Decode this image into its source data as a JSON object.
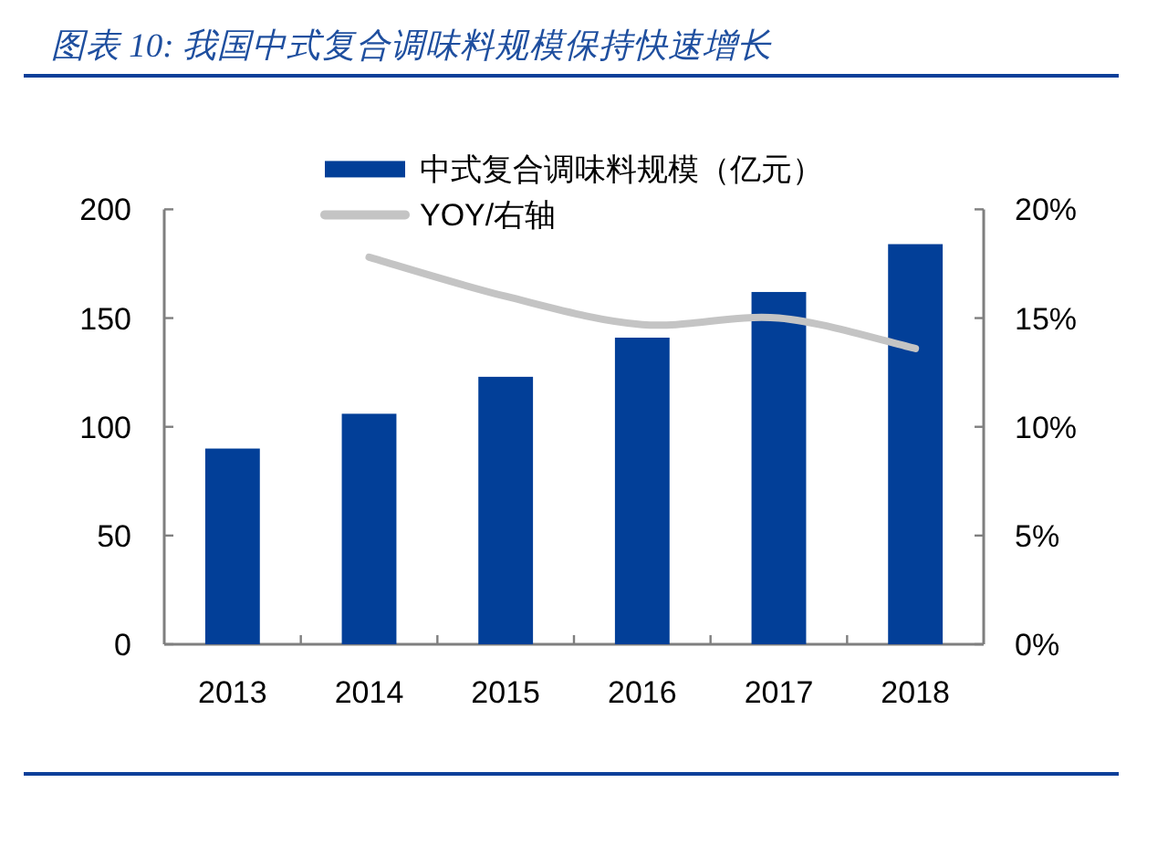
{
  "chart_data": {
    "type": "bar",
    "title": "图表 10: 我国中式复合调味料规模保持快速增长",
    "categories": [
      "2013",
      "2014",
      "2015",
      "2016",
      "2017",
      "2018"
    ],
    "series": [
      {
        "name": "中式复合调味料规模（亿元）",
        "color": "#023f98",
        "values": [
          90,
          106,
          123,
          141,
          162,
          184
        ]
      },
      {
        "name": "YOY/右轴",
        "type": "line",
        "axis": "y2",
        "color": "#c4c4c4",
        "values": [
          null,
          17.8,
          16.0,
          14.7,
          15.0,
          13.6
        ]
      }
    ],
    "ylim": [
      0,
      200
    ],
    "yticks": [
      0,
      50,
      100,
      150,
      200
    ],
    "y2lim": [
      0,
      20
    ],
    "y2ticks": [
      {
        "value": 0,
        "label": "0%"
      },
      {
        "value": 5,
        "label": "5%"
      },
      {
        "value": 10,
        "label": "10%"
      },
      {
        "value": 15,
        "label": "15%"
      },
      {
        "value": 20,
        "label": "20%"
      }
    ],
    "legend": "top"
  }
}
